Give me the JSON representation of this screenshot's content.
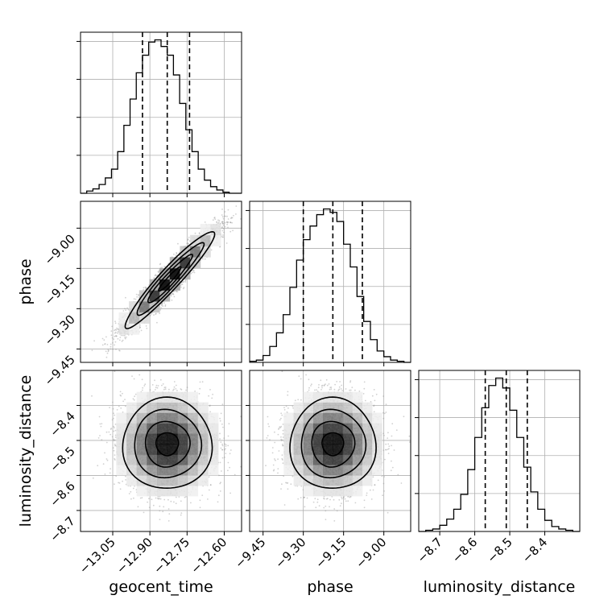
{
  "chart_data": {
    "type": "corner",
    "parameters": [
      "geocent_time",
      "phase",
      "luminosity_distance"
    ],
    "ranges": {
      "geocent_time": [
        -13.18,
        -12.53
      ],
      "phase": [
        -9.5,
        -8.9
      ],
      "luminosity_distance": [
        -8.76,
        -8.3
      ]
    },
    "ticks": {
      "geocent_time": {
        "values": [
          -13.05,
          -12.9,
          -12.75,
          -12.6
        ],
        "labels": [
          "−13.05",
          "−12.90",
          "−12.75",
          "−12.60"
        ]
      },
      "phase": {
        "values": [
          -9.45,
          -9.3,
          -9.15,
          -9.0
        ],
        "labels": [
          "−9.45",
          "−9.30",
          "−9.15",
          "−9.00"
        ]
      },
      "luminosity_distance_left": {
        "values": [
          -8.4,
          -8.5,
          -8.6,
          -8.7
        ],
        "labels": [
          "−8.4",
          "−8.5",
          "−8.6",
          "−8.7"
        ]
      },
      "luminosity_distance_bottom": {
        "values": [
          -8.7,
          -8.6,
          -8.5,
          -8.4
        ],
        "labels": [
          "−8.7",
          "−8.6",
          "−8.5",
          "−8.4"
        ]
      }
    },
    "marginals": [
      {
        "parameter": "geocent_time",
        "bin_edges": [
          -13.18,
          -13.155,
          -13.13,
          -13.105,
          -13.08,
          -13.055,
          -13.03,
          -13.005,
          -12.98,
          -12.955,
          -12.93,
          -12.905,
          -12.88,
          -12.855,
          -12.83,
          -12.805,
          -12.78,
          -12.755,
          -12.73,
          -12.705,
          -12.68,
          -12.655,
          -12.63,
          -12.605,
          -12.58,
          -12.555,
          -12.53
        ],
        "counts": [
          0,
          2,
          4,
          8,
          14,
          22,
          38,
          62,
          86,
          110,
          126,
          138,
          140,
          134,
          126,
          108,
          82,
          58,
          38,
          22,
          12,
          6,
          3,
          1,
          0,
          0
        ],
        "quantiles": [
          -12.93,
          -12.83,
          -12.74
        ]
      },
      {
        "parameter": "phase",
        "bin_edges": [
          -9.5,
          -9.475,
          -9.45,
          -9.425,
          -9.4,
          -9.375,
          -9.35,
          -9.325,
          -9.3,
          -9.275,
          -9.25,
          -9.225,
          -9.2,
          -9.175,
          -9.15,
          -9.125,
          -9.1,
          -9.075,
          -9.05,
          -9.025,
          -9.0,
          -8.975,
          -8.95,
          -8.925,
          -8.9
        ],
        "counts": [
          1,
          2,
          6,
          14,
          26,
          42,
          66,
          90,
          108,
          120,
          130,
          135,
          132,
          124,
          104,
          84,
          58,
          36,
          20,
          10,
          5,
          2,
          1,
          0
        ],
        "quantiles": [
          -9.3,
          -9.19,
          -9.08
        ]
      },
      {
        "parameter": "luminosity_distance",
        "bin_edges": [
          -8.76,
          -8.74,
          -8.72,
          -8.7,
          -8.68,
          -8.66,
          -8.64,
          -8.62,
          -8.6,
          -8.58,
          -8.56,
          -8.54,
          -8.52,
          -8.5,
          -8.48,
          -8.46,
          -8.44,
          -8.42,
          -8.4,
          -8.38,
          -8.36,
          -8.34,
          -8.32,
          -8.3
        ],
        "counts": [
          0,
          1,
          2,
          5,
          10,
          18,
          30,
          50,
          76,
          100,
          118,
          124,
          116,
          98,
          76,
          52,
          32,
          18,
          9,
          4,
          2,
          1,
          0
        ],
        "quantiles": [
          -8.57,
          -8.51,
          -8.45
        ]
      }
    ],
    "joint": [
      {
        "x": "geocent_time",
        "y": "phase",
        "center": [
          -12.82,
          -9.19
        ],
        "sd": [
          0.09,
          0.09
        ],
        "correlation": 0.95,
        "n_samples": 4000
      },
      {
        "x": "geocent_time",
        "y": "luminosity_distance",
        "center": [
          -12.83,
          -8.51
        ],
        "sd": [
          0.09,
          0.065
        ],
        "correlation": 0.0,
        "n_samples": 4000
      },
      {
        "x": "phase",
        "y": "luminosity_distance",
        "center": [
          -9.19,
          -8.51
        ],
        "sd": [
          0.08,
          0.065
        ],
        "correlation": 0.0,
        "n_samples": 4000
      }
    ],
    "contour_levels": [
      0.118,
      0.393,
      0.675,
      0.865
    ],
    "grid": true,
    "colors": {
      "lines": "#000000",
      "grid": "#b0b0b0",
      "points": "#9a9a9a"
    }
  }
}
